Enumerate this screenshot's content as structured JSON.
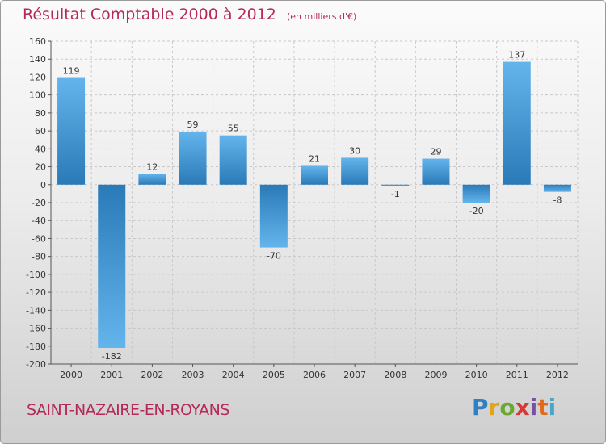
{
  "title": "Résultat Comptable 2000 à 2012",
  "subtitle": "(en milliers d'€)",
  "commune": "SAINT-NAZAIRE-EN-ROYANS",
  "brand": {
    "letters": [
      "P",
      "r",
      "o",
      "x",
      "i",
      "t",
      "i"
    ],
    "colors": [
      "#2e7fc4",
      "#e0a51a",
      "#6aa830",
      "#d43a3a",
      "#7b4ea3",
      "#e06a1a",
      "#4aa6c8"
    ]
  },
  "colors": {
    "bar_light": "#64b4ec",
    "bar_dark": "#2a7ab8",
    "title": "#b5285a",
    "grid": "#c8c8c8",
    "axis": "#555555"
  },
  "chart_data": {
    "type": "bar",
    "categories": [
      "2000",
      "2001",
      "2002",
      "2003",
      "2004",
      "2005",
      "2006",
      "2007",
      "2008",
      "2009",
      "2010",
      "2011",
      "2012"
    ],
    "values": [
      119,
      -182,
      12,
      59,
      55,
      -70,
      21,
      30,
      -1,
      29,
      -20,
      137,
      -8
    ],
    "data_labels": [
      "119",
      "-182",
      "12",
      "59",
      "55",
      "-70",
      "21",
      "30",
      "-1",
      "29",
      "-20",
      "137",
      "-8"
    ],
    "ylim": [
      -200,
      160
    ],
    "yticks": [
      160,
      140,
      120,
      100,
      80,
      60,
      40,
      20,
      0,
      -20,
      -40,
      -60,
      -80,
      -100,
      -120,
      -140,
      -160,
      -180,
      -200
    ],
    "ytick_labels": [
      "160",
      "140",
      "120",
      "100",
      "80",
      "60",
      "40",
      "20",
      "0",
      "-20",
      "-40",
      "-60",
      "-80",
      "-100",
      "-120",
      "-140",
      "-160",
      "-180",
      "-200"
    ],
    "grid": true
  }
}
